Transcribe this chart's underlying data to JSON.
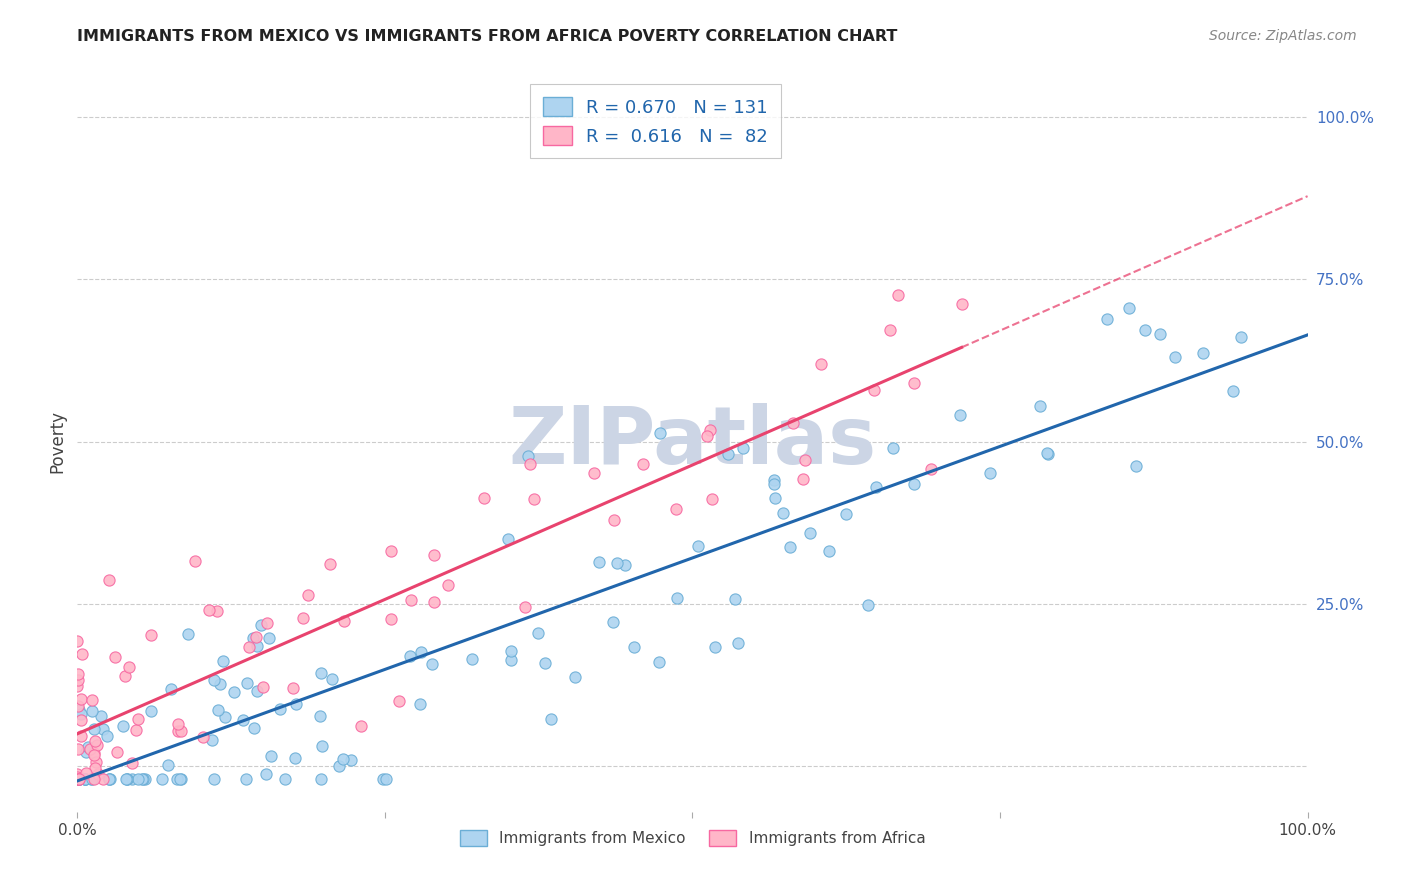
{
  "title": "IMMIGRANTS FROM MEXICO VS IMMIGRANTS FROM AFRICA POVERTY CORRELATION CHART",
  "source": "Source: ZipAtlas.com",
  "ylabel": "Poverty",
  "legend_label1": "Immigrants from Mexico",
  "legend_label2": "Immigrants from Africa",
  "legend_R1": "R = 0.670",
  "legend_N1": "N = 131",
  "legend_R2": "R =  0.616",
  "legend_N2": "N =  82",
  "color_mexico_face": "#aed4f0",
  "color_mexico_edge": "#6baed6",
  "color_africa_face": "#ffb6c8",
  "color_africa_edge": "#f768a1",
  "color_line_mexico": "#2166ac",
  "color_line_africa": "#e8436e",
  "color_dashed": "#e8436e",
  "watermark": "ZIPatlas",
  "watermark_color": "#ccd5e5",
  "background_color": "#ffffff",
  "grid_color": "#cccccc",
  "R_mexico": 0.67,
  "N_mexico": 131,
  "R_africa": 0.616,
  "N_africa": 82,
  "xlim": [
    0.0,
    1.0
  ],
  "ylim": [
    -0.07,
    1.07
  ],
  "yticks": [
    0.0,
    0.25,
    0.5,
    0.75,
    1.0
  ],
  "ytick_labels": [
    "",
    "25.0%",
    "50.0%",
    "75.0%",
    "100.0%"
  ],
  "xticks": [
    0.0,
    0.25,
    0.5,
    0.75,
    1.0
  ],
  "xtick_labels": [
    "0.0%",
    "",
    "",
    "",
    "100.0%"
  ]
}
